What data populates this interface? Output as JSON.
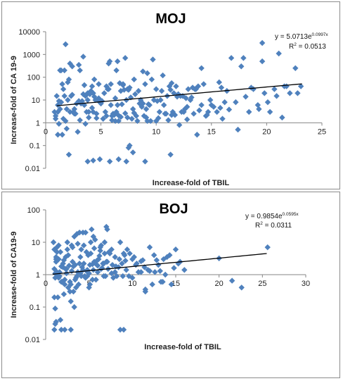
{
  "chart_data": [
    {
      "type": "scatter",
      "title": "MOJ",
      "xlabel": "Increase-fold of TBIL",
      "ylabel": "Increase-fold of CA 19-9",
      "x_ticks": [
        "0",
        "5",
        "10",
        "15",
        "20",
        "25"
      ],
      "y_ticks": [
        "0.01",
        "0.1",
        "1",
        "10",
        "100",
        "1000",
        "10000"
      ],
      "xlim": [
        0,
        25
      ],
      "ylim": [
        0.01,
        10000
      ],
      "y_scale": "log",
      "marker_color": "#4f81bd",
      "trendline_color": "#000000",
      "equation": {
        "prefix": "y = 5.0713e",
        "exponent": "0.0997x"
      },
      "r2": {
        "prefix": "R",
        "power": "2",
        "suffix": " = 0.0513"
      },
      "trendline": {
        "a": 5.0713,
        "b": 0.0997,
        "x_range": [
          1,
          23.2
        ]
      },
      "x": [
        1.8,
        2.2,
        2.4,
        3,
        0.9,
        1.2,
        2.6,
        3.6,
        3.9,
        4.3,
        4.6,
        5.2,
        6,
        6.6,
        7.4,
        8.2,
        9.1,
        10.2,
        11.4,
        12.8,
        13.9,
        15.2,
        16.6,
        17.9,
        19.6,
        21.1,
        22.6,
        4.2,
        6.4,
        7.2,
        8,
        9.2,
        10.6,
        11.8,
        13.6,
        14.1,
        15.7,
        19.3,
        20.7,
        21.6,
        23.1,
        1.1,
        1.6,
        2.3,
        3.3,
        4.8,
        5.9,
        6.8,
        7.7,
        8.8,
        10,
        11.2,
        12.4,
        12.9,
        14.3,
        16.4,
        18.6,
        19.6,
        21.8,
        1.3,
        2,
        2.8,
        3.5,
        4.1,
        4.9,
        5.5,
        6.3,
        7.1,
        7.9,
        8.6,
        9.4,
        10.3,
        11,
        11.9,
        12.6,
        13.3,
        14.7,
        15.8,
        16.8,
        17.7,
        19.8,
        20.9,
        22.1,
        0.8,
        1.4,
        2.1,
        2.7,
        3.4,
        3.8,
        4.4,
        5,
        5.7,
        6.5,
        7,
        7.6,
        8.4,
        9,
        9.8,
        10.8,
        11.6,
        12.2,
        13.1,
        13.8,
        15,
        16.2,
        18.1,
        20.3,
        21.4,
        1,
        1.7,
        2.5,
        3.2,
        4,
        4.7,
        5.3,
        5.9,
        6.7,
        7.3,
        8.1,
        8.9,
        9.6,
        10.4,
        11.3,
        12,
        12.7,
        13.5,
        14.5,
        15.9,
        17.2,
        18.8,
        22.8,
        1.2,
        1.9,
        2.6,
        3.6,
        4.2,
        5.1,
        5.6,
        6.2,
        6.9,
        7.5,
        8.3,
        9.3,
        10.1,
        10.9,
        11.7,
        12.5,
        13.4,
        14.9,
        16,
        19.2,
        0.9,
        1.5,
        2.2,
        3,
        3.7,
        4.5,
        5.4,
        6.1,
        6.8,
        7.8,
        8.7,
        9.5,
        10.5,
        11.5,
        12.3,
        13.2,
        14.6,
        15.5,
        18.4,
        20.1,
        1.1,
        1.8,
        2.4,
        3.1,
        3.9,
        4.6,
        5.2,
        6,
        6.6,
        7.2,
        8,
        9.2,
        10,
        11.1,
        12.1,
        13.7,
        17.4,
        1.6,
        2.9,
        4.4,
        5.8,
        7.4,
        9.7,
        11.4,
        1.3,
        3.4,
        5,
        6.4,
        8.5,
        10.7,
        14.1,
        2,
        3.8,
        5.5,
        7,
        9.1,
        12.8,
        1.4,
        4.3,
        6.5,
        8.8,
        1.7,
        3.5,
        5.7,
        6.3,
        1.1,
        1.5,
        2.1,
        1.9,
        3.8,
        4.3,
        4.9,
        5.8,
        6.6,
        7.3,
        7.6,
        7.5,
        7.9,
        9,
        11.3,
        3.1,
        4.8
      ],
      "y": [
        2800,
        400,
        300,
        350,
        1.5,
        0.9,
        2.5,
        0.9,
        1.7,
        3,
        1.6,
        1.5,
        2,
        2.1,
        1.7,
        2,
        1.7,
        1.6,
        2.2,
        1.4,
        3.5,
        5,
        3.8,
        700,
        500,
        1100,
        250,
        40,
        200,
        700,
        80,
        150,
        120,
        40,
        30,
        250,
        60,
        4,
        30,
        40,
        40,
        6,
        30,
        15,
        9,
        12,
        50,
        25,
        13,
        7,
        30,
        40,
        15,
        30,
        50,
        25,
        35,
        3200,
        40,
        4,
        60,
        7,
        45,
        25,
        8,
        40,
        12,
        28,
        4,
        10,
        6,
        3,
        15,
        14,
        4,
        35,
        3,
        4.5,
        700,
        300,
        20,
        15,
        20,
        3,
        8,
        80,
        2.5,
        18,
        20,
        14,
        7,
        30,
        6,
        45,
        35,
        25,
        50,
        10,
        2.5,
        20,
        15,
        10,
        40,
        6,
        8,
        14,
        3,
        1.7,
        15,
        15,
        3,
        7,
        18,
        10,
        20,
        6,
        55,
        10,
        18,
        2,
        80,
        10,
        28,
        18,
        12,
        30,
        2,
        35,
        8,
        30,
        20,
        9,
        4,
        4,
        15,
        4.5,
        9,
        30,
        2.2,
        6.5,
        28,
        1.2,
        6.5,
        9,
        2.5,
        2.2,
        3,
        2.5,
        10,
        1.5,
        6,
        2,
        50,
        3,
        9,
        3,
        10,
        3,
        2.5,
        1.8,
        1.5,
        5,
        1.2,
        25,
        3,
        3,
        13,
        2.2,
        3,
        3,
        8,
        3,
        1.2,
        17,
        1.3,
        3,
        2.5,
        1.5,
        1.3,
        1.2,
        2.6,
        2.7,
        1.2,
        1.2,
        1.3,
        0.8,
        0.3,
        0.5,
        1.5,
        0.4,
        80,
        500,
        30,
        600,
        55,
        200,
        800,
        9,
        3,
        7,
        6,
        6,
        10,
        10,
        2,
        50,
        4,
        5,
        200,
        20,
        500,
        180,
        200,
        6,
        400,
        1.2,
        0.3,
        0.3,
        0.04,
        0.55,
        0.02,
        0.022,
        0.025,
        0.02,
        0.025,
        0.02,
        0.1,
        0.08,
        0.05,
        0.02,
        0.04,
        200,
        50
      ]
    },
    {
      "type": "scatter",
      "title": "BOJ",
      "xlabel": "Increase-fold of TBIL",
      "ylabel": "Increase-fold of CA19-9",
      "x_ticks": [
        "0",
        "5",
        "10",
        "15",
        "20",
        "25",
        "30"
      ],
      "y_ticks": [
        "0.01",
        "0.1",
        "1",
        "10",
        "100"
      ],
      "xlim": [
        0,
        30
      ],
      "ylim": [
        0.01,
        100
      ],
      "y_scale": "log",
      "marker_color": "#4f81bd",
      "trendline_color": "#000000",
      "equation": {
        "prefix": "y = 0.9854e",
        "exponent": "0.0595x"
      },
      "r2": {
        "prefix": "R",
        "power": "2",
        "suffix": " = 0.0311"
      },
      "trendline": {
        "a": 0.9854,
        "b": 0.0595,
        "x_range": [
          0.8,
          25.5
        ]
      },
      "x": [
        1,
        1.1,
        1.2,
        1.3,
        1.5,
        1.6,
        1.8,
        2,
        2.2,
        2.4,
        2.6,
        2.8,
        3,
        3.2,
        3.4,
        3.6,
        3.8,
        4,
        4.2,
        4.4,
        4.6,
        4.8,
        5,
        5.2,
        5.4,
        5.6,
        5.8,
        6,
        6.2,
        6.4,
        6.6,
        6.8,
        7,
        7.3,
        7.6,
        8,
        8.4,
        8.8,
        9.2,
        9.6,
        10,
        10.5,
        11,
        11.5,
        12,
        12.5,
        13,
        13.5,
        14,
        14.5,
        15,
        15.5,
        16,
        20,
        21.5,
        22.6,
        25.6,
        1,
        1.2,
        1.4,
        1.7,
        1.9,
        2.1,
        2.3,
        2.5,
        2.7,
        2.9,
        3.1,
        3.3,
        3.5,
        3.7,
        3.9,
        4.1,
        4.3,
        4.5,
        4.7,
        4.9,
        5.1,
        5.3,
        5.5,
        5.7,
        5.9,
        6.1,
        6.3,
        6.5,
        6.7,
        6.9,
        7.1,
        7.4,
        7.7,
        8.1,
        8.5,
        8.9,
        9.3,
        9.7,
        10.2,
        10.7,
        11.2,
        11.8,
        12.3,
        12.8,
        13.3,
        13.8,
        14.3,
        14.8,
        15.3,
        1.1,
        1.3,
        1.6,
        2,
        2.3,
        2.6,
        3,
        3.3,
        3.6,
        4,
        4.4,
        4.8,
        5.2,
        5.6,
        6,
        6.4,
        6.8,
        7.2,
        7.8,
        8.6,
        9.4,
        10.4,
        11.4,
        12.6,
        13.6,
        0.9,
        1.2,
        1.5,
        1.9,
        2.2,
        2.5,
        2.9,
        3.2,
        3.5,
        3.9,
        4.3,
        4.7,
        5.1,
        5.5,
        5.9,
        6.3,
        6.7,
        7.1,
        7.6,
        8.2,
        9,
        10,
        11,
        12,
        13.2,
        1,
        1.4,
        1.8,
        2.1,
        2.4,
        2.8,
        3.1,
        3.4,
        3.7,
        4.1,
        4.6,
        5,
        5.4,
        6.1,
        7,
        8,
        9.1,
        11.5,
        1.3,
        1.7,
        2.2,
        1,
        1.1,
        1.2,
        1.8,
        2.9,
        8.6,
        9,
        1.1,
        1.5
      ],
      "y": [
        1.5,
        0.8,
        2.5,
        1.2,
        3,
        0.9,
        1.8,
        2.2,
        0.7,
        1.1,
        4,
        0.6,
        1.3,
        0.3,
        2,
        0.9,
        0.5,
        3.5,
        1.7,
        2.2,
        0.8,
        1.4,
        0.4,
        4.5,
        2.1,
        6.5,
        0.7,
        1.9,
        3.8,
        1.5,
        2.2,
        10,
        2.5,
        5,
        1.1,
        3.5,
        1.7,
        2.2,
        2.7,
        0.9,
        3,
        2.2,
        2.6,
        0.3,
        1.3,
        4,
        2,
        0.6,
        3.5,
        0.5,
        6,
        2.5,
        1.4,
        3.2,
        0.65,
        0.4,
        7,
        0.2,
        3,
        1,
        5,
        0.6,
        2.8,
        1.5,
        10,
        1.9,
        0.5,
        2.5,
        15,
        0.8,
        1.2,
        20,
        6,
        1.4,
        0.9,
        5,
        4,
        2,
        25,
        1.4,
        12,
        2.7,
        3,
        5.5,
        1.6,
        2.2,
        0.9,
        2.5,
        4.5,
        2,
        1.8,
        3,
        0.9,
        1.4,
        4.5,
        3.5,
        1.2,
        2.8,
        1.4,
        0.5,
        2.8,
        0.6,
        1,
        4,
        1.6,
        2.2,
        1.1,
        5,
        1.2,
        1.7,
        3.5,
        0.4,
        8,
        0.1,
        18,
        1.1,
        8,
        0.9,
        10,
        2.5,
        1.2,
        8,
        4.5,
        1.5,
        0.8,
        10,
        6,
        2,
        1.7,
        1.2,
        3,
        10,
        3.5,
        0.8,
        1.8,
        0.5,
        6,
        0.15,
        1.8,
        0.4,
        2.2,
        20,
        1.3,
        0.5,
        15,
        2,
        7,
        0.9,
        25,
        6,
        0.9,
        4.5,
        0.8,
        1.2,
        7,
        1.3,
        6,
        0.2,
        0.6,
        0.25,
        1.5,
        0.3,
        7,
        0.7,
        9,
        0.9,
        20,
        1.1,
        0.7,
        3,
        30,
        1.2,
        4,
        0.35,
        7,
        0.04,
        0.02,
        0.02,
        0.03,
        0.035,
        0.02,
        0.02,
        0.02,
        0.02,
        0.09,
        8
      ]
    }
  ]
}
